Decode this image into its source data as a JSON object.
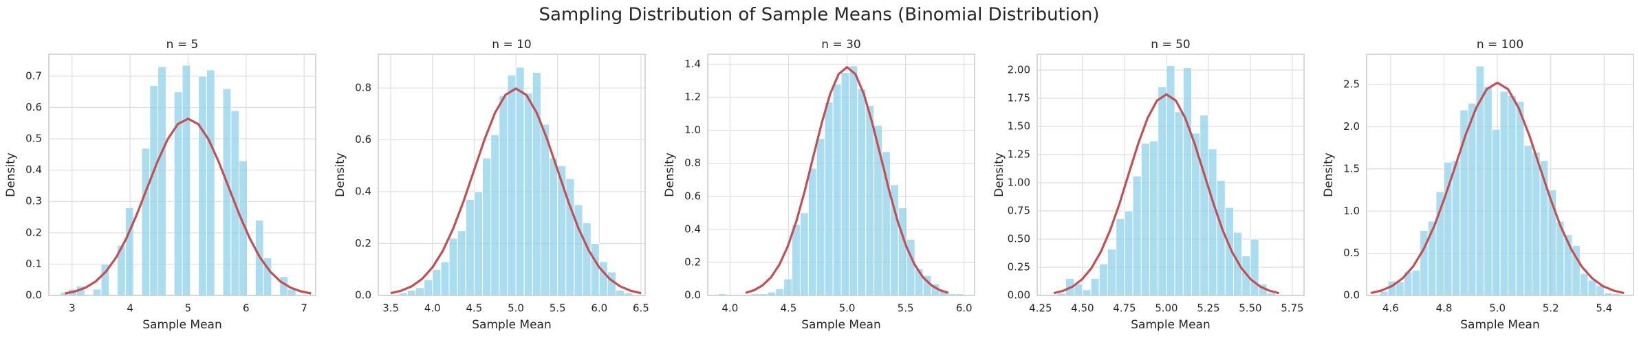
{
  "title": "Sampling Distribution of Sample Means (Binomial Distribution)",
  "chart_data": [
    {
      "type": "histogram",
      "title": "n = 5",
      "x_label": "Sample Mean",
      "y_label": "Density",
      "color": "#87ceeb",
      "grid": true,
      "bins": [
        2.8,
        2.94,
        3.08,
        3.22,
        3.36,
        3.5,
        3.64,
        3.78,
        3.92,
        4.06,
        4.2,
        4.34,
        4.48,
        4.62,
        4.76,
        4.9,
        5.04,
        5.18,
        5.32,
        5.46,
        5.6,
        5.74,
        5.88,
        6.02,
        6.16,
        6.3,
        6.44,
        6.58,
        6.72,
        6.86,
        7.0
      ],
      "values": [
        0.01,
        0.02,
        0.03,
        0,
        0.02,
        0.1,
        0,
        0.16,
        0.28,
        0,
        0.47,
        0.67,
        0.73,
        0,
        0.65,
        0.735,
        0,
        0.7,
        0.72,
        0,
        0.66,
        0.59,
        0.43,
        0,
        0.24,
        0.12,
        0,
        0.06,
        0.02,
        0
      ],
      "curve": {
        "type": "line",
        "color": "#c44e52",
        "x": [
          2.879,
          3.055,
          3.232,
          3.409,
          3.586,
          3.763,
          3.939,
          4.116,
          4.293,
          4.47,
          4.646,
          4.823,
          5.0,
          5.177,
          5.354,
          5.53,
          5.707,
          5.884,
          6.061,
          6.237,
          6.414,
          6.591,
          6.768,
          6.945,
          7.121
        ],
        "values": [
          0.0063,
          0.0129,
          0.0247,
          0.0448,
          0.0764,
          0.122,
          0.1831,
          0.2582,
          0.3422,
          0.4258,
          0.4979,
          0.5469,
          0.5642,
          0.5469,
          0.4979,
          0.4258,
          0.3422,
          0.2582,
          0.1831,
          0.122,
          0.0764,
          0.0448,
          0.0247,
          0.0129,
          0.0063
        ]
      },
      "xlim": [
        2.6,
        7.2
      ],
      "xticks": [
        3,
        4,
        5,
        6,
        7
      ],
      "ylim": [
        0,
        0.77
      ],
      "yticks": [
        {
          "value": 0,
          "label": "0.0"
        },
        0.1,
        0.2,
        0.3,
        0.4,
        0.5,
        0.6,
        0.7
      ]
    },
    {
      "type": "histogram",
      "title": "n = 10",
      "x_label": "Sample Mean",
      "y_label": "Density",
      "color": "#87ceeb",
      "grid": true,
      "bins": [
        3.5,
        3.6,
        3.7,
        3.8,
        3.9,
        4.0,
        4.1,
        4.2,
        4.3,
        4.4,
        4.5,
        4.6,
        4.7,
        4.8,
        4.9,
        5.0,
        5.1,
        5.2,
        5.3,
        5.4,
        5.5,
        5.6,
        5.7,
        5.8,
        5.9,
        6.0,
        6.1,
        6.2,
        6.3,
        6.4
      ],
      "values": [
        0,
        0.01,
        0.02,
        0.03,
        0.06,
        0.1,
        0.13,
        0.22,
        0.25,
        0.37,
        0.4,
        0.53,
        0.62,
        0.77,
        0.85,
        0.88,
        0.78,
        0.86,
        0.66,
        0.53,
        0.5,
        0.45,
        0.35,
        0.28,
        0.2,
        0.13,
        0.09,
        0.02,
        0.01
      ],
      "curve": {
        "type": "line",
        "color": "#c44e52",
        "x": [
          3.5,
          3.625,
          3.75,
          3.875,
          4.0,
          4.125,
          4.25,
          4.375,
          4.5,
          4.625,
          4.75,
          4.875,
          5.0,
          5.125,
          5.25,
          5.375,
          5.5,
          5.625,
          5.75,
          5.875,
          6.0,
          6.125,
          6.25,
          6.375,
          6.5
        ],
        "values": [
          0.0089,
          0.0182,
          0.035,
          0.0634,
          0.108,
          0.1726,
          0.259,
          0.3652,
          0.484,
          0.6022,
          0.7042,
          0.7734,
          0.7978,
          0.7734,
          0.7042,
          0.6022,
          0.484,
          0.3652,
          0.259,
          0.1726,
          0.108,
          0.0634,
          0.035,
          0.0182,
          0.0089
        ]
      },
      "xlim": [
        3.35,
        6.55
      ],
      "xticks": [
        3.5,
        {
          "value": 4,
          "label": "4.0"
        },
        4.5,
        {
          "value": 5,
          "label": "5.0"
        },
        5.5,
        {
          "value": 6,
          "label": "6.0"
        },
        6.5
      ],
      "ylim": [
        0,
        0.93
      ],
      "yticks": [
        {
          "value": 0,
          "label": "0.0"
        },
        0.2,
        0.4,
        0.6,
        0.8
      ]
    },
    {
      "type": "histogram",
      "title": "n = 30",
      "x_label": "Sample Mean",
      "y_label": "Density",
      "color": "#87ceeb",
      "grid": true,
      "bins": [
        3.9,
        3.97,
        4.04,
        4.11,
        4.18,
        4.25,
        4.32,
        4.39,
        4.46,
        4.53,
        4.6,
        4.67,
        4.74,
        4.81,
        4.88,
        4.95,
        5.02,
        5.09,
        5.16,
        5.23,
        5.3,
        5.37,
        5.44,
        5.51,
        5.58,
        5.65,
        5.72,
        5.79,
        5.86,
        5.93,
        6.0
      ],
      "values": [
        0.01,
        0,
        0,
        0,
        0.01,
        0.01,
        0.02,
        0.04,
        0.1,
        0.43,
        0.5,
        0.77,
        0.95,
        1.17,
        1.28,
        1.35,
        1.39,
        1.25,
        1.15,
        1.03,
        0.87,
        0.67,
        0.53,
        0.34,
        0.16,
        0.12,
        0.07,
        0.03,
        0.01,
        0.01
      ],
      "curve": {
        "type": "line",
        "color": "#c44e52",
        "x": [
          4.134,
          4.206,
          4.278,
          4.351,
          4.423,
          4.495,
          4.567,
          4.639,
          4.711,
          4.784,
          4.856,
          4.928,
          5.0,
          5.072,
          5.144,
          5.216,
          5.289,
          5.361,
          5.433,
          5.505,
          5.577,
          5.649,
          5.722,
          5.794,
          5.866
        ],
        "values": [
          0.0153,
          0.0315,
          0.0606,
          0.1098,
          0.1871,
          0.299,
          0.4486,
          0.6325,
          0.8383,
          1.0431,
          1.2197,
          1.3396,
          1.3819,
          1.3396,
          1.2197,
          1.0431,
          0.8383,
          0.6325,
          0.4486,
          0.299,
          0.1871,
          0.1098,
          0.0606,
          0.0315,
          0.0153
        ]
      },
      "xlim": [
        3.81,
        6.09
      ],
      "xticks": [
        {
          "value": 4,
          "label": "4.0"
        },
        4.5,
        {
          "value": 5,
          "label": "5.0"
        },
        5.5,
        {
          "value": 6,
          "label": "6.0"
        }
      ],
      "ylim": [
        0,
        1.46
      ],
      "yticks": [
        {
          "value": 0,
          "label": "0.0"
        },
        0.2,
        0.4,
        0.6,
        0.8,
        {
          "value": 1,
          "label": "1.0"
        },
        1.2,
        1.4
      ]
    },
    {
      "type": "histogram",
      "title": "n = 50",
      "x_label": "Sample Mean",
      "y_label": "Density",
      "color": "#87ceeb",
      "grid": true,
      "bins": [
        4.3,
        4.35,
        4.4,
        4.45,
        4.5,
        4.55,
        4.6,
        4.65,
        4.7,
        4.75,
        4.8,
        4.85,
        4.9,
        4.95,
        5.0,
        5.05,
        5.1,
        5.15,
        5.2,
        5.25,
        5.3,
        5.35,
        5.4,
        5.45,
        5.5,
        5.55,
        5.6,
        5.65,
        5.7,
        5.75
      ],
      "values": [
        0,
        0.02,
        0.15,
        0.1,
        0.05,
        0.15,
        0.28,
        0.41,
        0.68,
        0.75,
        1.06,
        1.35,
        1.37,
        1.85,
        2.04,
        1.63,
        2.02,
        1.44,
        1.6,
        1.3,
        1.02,
        0.78,
        0.56,
        0.35,
        0.5,
        0.1,
        0.02,
        0,
        0
      ],
      "curve": {
        "type": "line",
        "color": "#c44e52",
        "x": [
          4.329,
          4.385,
          4.441,
          4.497,
          4.553,
          4.609,
          4.665,
          4.721,
          4.776,
          4.832,
          4.888,
          4.944,
          5.0,
          5.056,
          5.112,
          5.168,
          5.224,
          5.28,
          5.335,
          5.391,
          5.447,
          5.503,
          5.559,
          5.615,
          5.671
        ],
        "values": [
          0.0198,
          0.0407,
          0.0783,
          0.1418,
          0.2415,
          0.3859,
          0.5791,
          0.8166,
          1.0823,
          1.3466,
          1.5746,
          1.7294,
          1.784,
          1.7294,
          1.5746,
          1.3466,
          1.0823,
          0.8166,
          0.5791,
          0.3859,
          0.2415,
          0.1418,
          0.0783,
          0.0407,
          0.0198
        ]
      },
      "xlim": [
        4.23,
        5.82
      ],
      "xticks": [
        4.25,
        {
          "value": 4.5,
          "label": "4.50"
        },
        4.75,
        {
          "value": 5,
          "label": "5.00"
        },
        5.25,
        {
          "value": 5.5,
          "label": "5.50"
        },
        5.75
      ],
      "ylim": [
        0,
        2.14
      ],
      "yticks": [
        {
          "value": 0,
          "label": "0.00"
        },
        0.25,
        {
          "value": 0.5,
          "label": "0.50"
        },
        0.75,
        {
          "value": 1,
          "label": "1.00"
        },
        1.25,
        {
          "value": 1.5,
          "label": "1.50"
        },
        1.75,
        {
          "value": 2,
          "label": "2.00"
        }
      ]
    },
    {
      "type": "histogram",
      "title": "n = 100",
      "x_label": "Sample Mean",
      "y_label": "Density",
      "color": "#87ceeb",
      "grid": true,
      "bins": [
        4.56,
        4.59,
        4.62,
        4.65,
        4.68,
        4.71,
        4.74,
        4.77,
        4.8,
        4.83,
        4.86,
        4.89,
        4.92,
        4.95,
        4.98,
        5.01,
        5.04,
        5.07,
        5.1,
        5.13,
        5.16,
        5.19,
        5.22,
        5.25,
        5.28,
        5.31,
        5.34,
        5.37,
        5.4,
        5.43,
        5.46
      ],
      "values": [
        0.05,
        0.17,
        0.16,
        0.28,
        0.3,
        0.77,
        0.88,
        1.23,
        1.58,
        1.6,
        2.2,
        2.28,
        2.72,
        2.48,
        1.97,
        2.42,
        2.37,
        2.3,
        1.78,
        1.7,
        1.6,
        1.25,
        0.88,
        0.72,
        0.59,
        0.26,
        0.18,
        0.12,
        0.03,
        0.02
      ],
      "curve": {
        "type": "line",
        "color": "#c44e52",
        "x": [
          4.526,
          4.565,
          4.605,
          4.644,
          4.684,
          4.723,
          4.763,
          4.802,
          4.842,
          4.881,
          4.921,
          4.96,
          5.0,
          5.04,
          5.079,
          5.119,
          5.158,
          5.198,
          5.237,
          5.277,
          5.316,
          5.356,
          5.395,
          5.435,
          5.474
        ],
        "values": [
          0.028,
          0.0576,
          0.1107,
          0.2005,
          0.3415,
          0.5458,
          0.819,
          1.1549,
          1.5306,
          1.9043,
          2.2269,
          2.4457,
          2.5229,
          2.4457,
          2.2269,
          1.9043,
          1.5306,
          1.1549,
          0.819,
          0.5458,
          0.3415,
          0.2005,
          0.1107,
          0.0576,
          0.028
        ]
      },
      "xlim": [
        4.51,
        5.51
      ],
      "xticks": [
        4.6,
        4.8,
        {
          "value": 5,
          "label": "5.0"
        },
        5.2,
        5.4
      ],
      "ylim": [
        0,
        2.86
      ],
      "yticks": [
        {
          "value": 0,
          "label": "0.0"
        },
        0.5,
        {
          "value": 1,
          "label": "1.0"
        },
        1.5,
        {
          "value": 2,
          "label": "2.0"
        },
        2.5
      ]
    }
  ]
}
